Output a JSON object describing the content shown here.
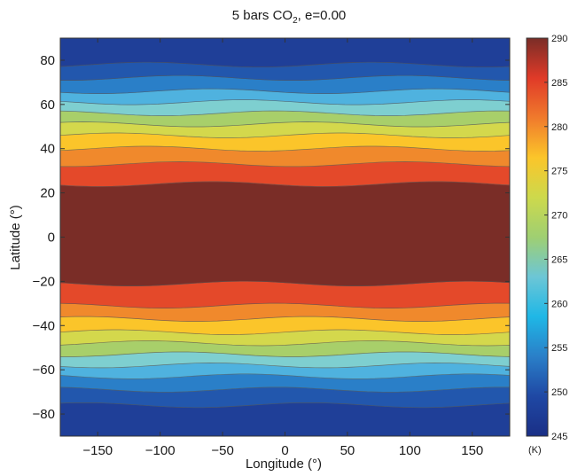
{
  "chart_data": {
    "type": "heatmap",
    "title_main": "5 bars CO",
    "title_sub": "2",
    "title_rest": ", e=0.00",
    "xlabel": "Longitude (°)",
    "ylabel": "Latitude (°)",
    "xlim": [
      -180,
      180
    ],
    "ylim": [
      -90,
      90
    ],
    "xticks": [
      -150,
      -100,
      -50,
      0,
      50,
      100,
      150
    ],
    "yticks": [
      -80,
      -60,
      -40,
      -20,
      0,
      20,
      40,
      60,
      80
    ],
    "xtick_labels": [
      "−150",
      "−100",
      "−50",
      "0",
      "50",
      "100",
      "150"
    ],
    "ytick_labels": [
      "−80",
      "−60",
      "−40",
      "−20",
      "0",
      "20",
      "40",
      "60",
      "80"
    ],
    "colorbar": {
      "min": 245,
      "max": 290,
      "ticks": [
        245,
        250,
        255,
        260,
        265,
        270,
        275,
        280,
        285,
        290
      ],
      "tick_labels": [
        "245",
        "250",
        "255",
        "260",
        "265",
        "270",
        "275",
        "280",
        "285",
        "290"
      ],
      "unit": "(K)"
    },
    "bands": [
      {
        "lat_from": -90,
        "lat_to": -76,
        "temperature": 249.5,
        "color": "#1f3f98"
      },
      {
        "lat_from": -76,
        "lat_to": -69,
        "temperature": 251.5,
        "color": "#2257ad"
      },
      {
        "lat_from": -69,
        "lat_to": -63,
        "temperature": 254.5,
        "color": "#2a7fc8"
      },
      {
        "lat_from": -63,
        "lat_to": -58,
        "temperature": 258,
        "color": "#4fb2df"
      },
      {
        "lat_from": -58,
        "lat_to": -53,
        "temperature": 262,
        "color": "#7ecfd0"
      },
      {
        "lat_from": -53,
        "lat_to": -48,
        "temperature": 266,
        "color": "#a8cf6a"
      },
      {
        "lat_from": -48,
        "lat_to": -43,
        "temperature": 270,
        "color": "#d4d84c"
      },
      {
        "lat_from": -43,
        "lat_to": -37,
        "temperature": 274,
        "color": "#fbc52a"
      },
      {
        "lat_from": -37,
        "lat_to": -31,
        "temperature": 278,
        "color": "#f0892c"
      },
      {
        "lat_from": -31,
        "lat_to": -21,
        "temperature": 282,
        "color": "#e4492a"
      },
      {
        "lat_from": -21,
        "lat_to": 24,
        "temperature": 289,
        "color": "#7a2d27"
      },
      {
        "lat_from": 24,
        "lat_to": 33,
        "temperature": 282,
        "color": "#e4492a"
      },
      {
        "lat_from": 33,
        "lat_to": 40,
        "temperature": 278,
        "color": "#f0892c"
      },
      {
        "lat_from": 40,
        "lat_to": 46,
        "temperature": 274,
        "color": "#fbc52a"
      },
      {
        "lat_from": 46,
        "lat_to": 51,
        "temperature": 270,
        "color": "#d4d84c"
      },
      {
        "lat_from": 51,
        "lat_to": 56,
        "temperature": 266,
        "color": "#a8cf6a"
      },
      {
        "lat_from": 56,
        "lat_to": 61,
        "temperature": 262,
        "color": "#7ecfd0"
      },
      {
        "lat_from": 61,
        "lat_to": 66,
        "temperature": 258,
        "color": "#4fb2df"
      },
      {
        "lat_from": 66,
        "lat_to": 72,
        "temperature": 254.5,
        "color": "#2a7fc8"
      },
      {
        "lat_from": 72,
        "lat_to": 78,
        "temperature": 251.5,
        "color": "#2257ad"
      },
      {
        "lat_from": 78,
        "lat_to": 90,
        "temperature": 249.5,
        "color": "#1f3f98"
      }
    ],
    "colormap": [
      "#1a2f86",
      "#1f48a4",
      "#2a7fc8",
      "#1fb7e6",
      "#6cc6d6",
      "#9fcf72",
      "#cdd94c",
      "#fbc52a",
      "#f07a2c",
      "#e03a28",
      "#7a2d27"
    ]
  }
}
